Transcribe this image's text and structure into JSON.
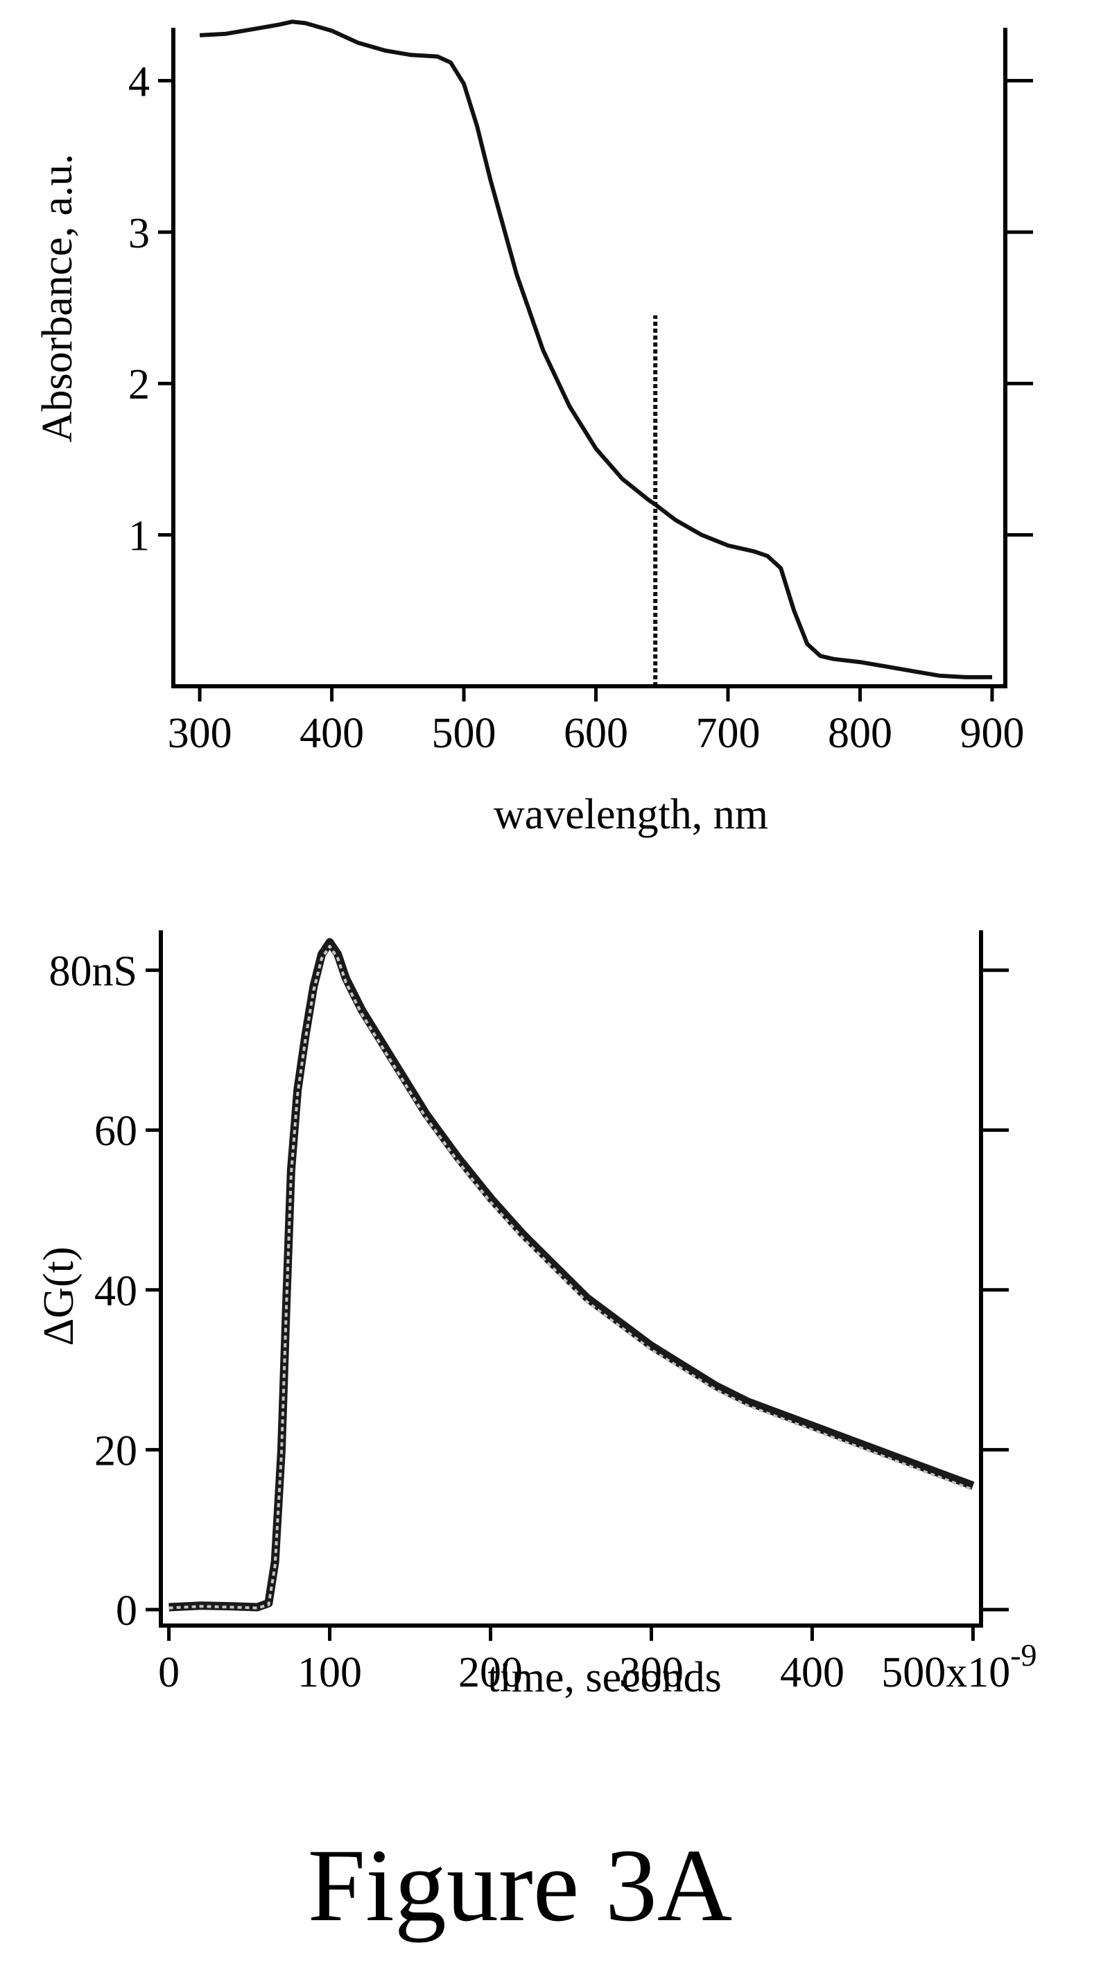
{
  "figure": {
    "caption": "Figure 3A"
  },
  "chart_data": [
    {
      "type": "line",
      "xlabel": "wavelength, nm",
      "ylabel": "Absorbance, a.u.",
      "xlim": [
        280,
        910
      ],
      "ylim": [
        0,
        4.35
      ],
      "x_ticks": [
        300,
        400,
        500,
        600,
        700,
        800,
        900
      ],
      "x_tick_labels": [
        "300",
        "400",
        "500",
        "600",
        "700",
        "800",
        "900"
      ],
      "y_ticks": [
        1,
        2,
        3,
        4
      ],
      "y_tick_labels": [
        "1",
        "2",
        "3",
        "4"
      ],
      "grid": false,
      "series": [
        {
          "style": "solid",
          "color": "#111111",
          "x": [
            300,
            320,
            340,
            360,
            370,
            380,
            400,
            420,
            440,
            460,
            480,
            490,
            500,
            510,
            520,
            540,
            560,
            580,
            600,
            620,
            640,
            645,
            660,
            680,
            700,
            720,
            730,
            740,
            750,
            760,
            770,
            780,
            800,
            820,
            840,
            860,
            880,
            900
          ],
          "y": [
            4.3,
            4.31,
            4.34,
            4.37,
            4.39,
            4.38,
            4.33,
            4.25,
            4.2,
            4.17,
            4.16,
            4.12,
            3.98,
            3.7,
            3.35,
            2.72,
            2.22,
            1.85,
            1.57,
            1.37,
            1.23,
            1.2,
            1.1,
            1.0,
            0.93,
            0.89,
            0.86,
            0.78,
            0.5,
            0.28,
            0.2,
            0.18,
            0.16,
            0.13,
            0.1,
            0.07,
            0.06,
            0.06
          ]
        },
        {
          "style": "dotted-vertical-marker",
          "color": "#111111",
          "x": [
            645,
            645
          ],
          "y": [
            0,
            2.45
          ]
        }
      ]
    },
    {
      "type": "line",
      "xlabel": "time, seconds",
      "ylabel": "ΔG(t)",
      "xlim": [
        -5,
        505
      ],
      "ylim": [
        -2,
        85
      ],
      "x_ticks": [
        0,
        100,
        200,
        300,
        400,
        500
      ],
      "x_tick_labels": [
        "0",
        "100",
        "200",
        "300",
        "400",
        "500x10⁻⁹"
      ],
      "y_ticks": [
        0,
        20,
        40,
        60,
        80
      ],
      "y_tick_labels": [
        "0",
        "20",
        "40",
        "60",
        "80nS"
      ],
      "grid": false,
      "series": [
        {
          "style": "thick-solid",
          "color": "#1a1a1a",
          "x": [
            0,
            20,
            40,
            55,
            62,
            66,
            70,
            73,
            76,
            80,
            85,
            90,
            95,
            100,
            105,
            110,
            120,
            140,
            160,
            180,
            200,
            220,
            240,
            260,
            280,
            300,
            320,
            340,
            360,
            380,
            400,
            420,
            440,
            460,
            480,
            500
          ],
          "y": [
            0.3,
            0.5,
            0.4,
            0.3,
            0.8,
            6,
            20,
            38,
            55,
            65,
            72,
            78,
            82,
            83.5,
            82,
            79,
            75,
            68.5,
            62,
            56.5,
            51.5,
            47,
            43,
            39,
            36,
            33,
            30.5,
            28,
            26,
            24.5,
            23,
            21.5,
            20,
            18.5,
            17,
            15.5
          ]
        },
        {
          "style": "light-fit",
          "color": "#c4c4c4",
          "x": [
            0,
            20,
            40,
            55,
            62,
            66,
            70,
            73,
            76,
            80,
            85,
            90,
            95,
            100,
            105,
            110,
            120,
            140,
            160,
            180,
            200,
            220,
            240,
            260,
            280,
            300,
            320,
            340,
            360,
            380,
            400,
            420,
            440,
            460,
            480,
            500
          ],
          "y": [
            0.2,
            0.4,
            0.3,
            0.2,
            0.6,
            5.5,
            19.5,
            37.5,
            54.5,
            64.5,
            71.5,
            77.5,
            81.5,
            83,
            81.5,
            78.5,
            74.5,
            68,
            61.5,
            56,
            51,
            46.5,
            42.5,
            38.5,
            35.5,
            32.5,
            30,
            27.5,
            25.5,
            24,
            22.5,
            21,
            19.5,
            18,
            16.5,
            15
          ]
        }
      ]
    }
  ]
}
